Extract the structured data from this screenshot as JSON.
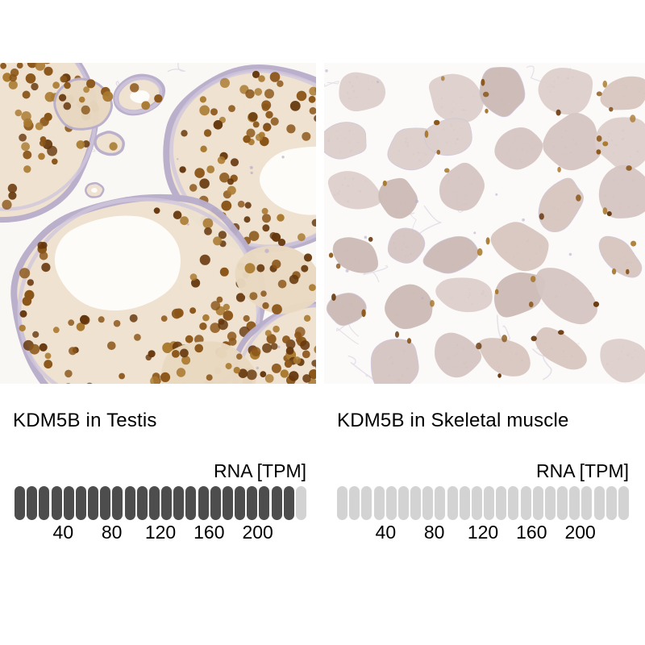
{
  "figure": {
    "type": "immunohistochemistry comparison with RNA expression bars",
    "protein": "KDM5B"
  },
  "panels": [
    {
      "title": "KDM5B in Testis",
      "tissue": "Testis",
      "rna_unit_label": "RNA [TPM]",
      "micrograph": {
        "kind": "IHC staining",
        "description": "Testis tissue: seminiferous tubules with strong brown nuclear staining, lavender tubule borders, white lumens"
      },
      "bar": {
        "total_pills": 24,
        "filled_pills": 23,
        "tpm_per_pill": 10,
        "ticks": [
          "40",
          "80",
          "120",
          "160",
          "200"
        ]
      }
    },
    {
      "title": "KDM5B in Skeletal muscle",
      "tissue": "Skeletal muscle",
      "rna_unit_label": "RNA [TPM]",
      "micrograph": {
        "kind": "IHC staining",
        "description": "Skeletal muscle: pale pink-mauve fiber cross-sections with sparse small brown nuclei, no significant staining"
      },
      "bar": {
        "total_pills": 24,
        "filled_pills": 0,
        "tpm_per_pill": 10,
        "ticks": [
          "40",
          "80",
          "120",
          "160",
          "200"
        ]
      }
    }
  ],
  "chart_data": [
    {
      "type": "bar",
      "title": "KDM5B in Testis",
      "value_label": "RNA [TPM]",
      "value_tpm": 230,
      "axis_ticks": [
        40,
        80,
        120,
        160,
        200
      ],
      "axis_max": 240,
      "segments": 24,
      "filled_segments": 23,
      "legend_position": "none",
      "grid": false
    },
    {
      "type": "bar",
      "title": "KDM5B in Skeletal muscle",
      "value_label": "RNA [TPM]",
      "value_tpm": 0,
      "axis_ticks": [
        40,
        80,
        120,
        160,
        200
      ],
      "axis_max": 240,
      "segments": 24,
      "filled_segments": 0,
      "legend_position": "none",
      "grid": false
    }
  ],
  "colors": {
    "page_bg": "#ffffff",
    "text": "#000000",
    "pill_filled": "#4d4d4d",
    "pill_empty": "#d3d3d3",
    "stain": {
      "testis_bg": "#faf8f5",
      "cytoplasm": "#efe2cf",
      "cytoplasm2": "#e9d8c1",
      "nucleus_brown_dark": "#66370c",
      "nucleus_brown": "#8a5518",
      "nucleus_brown_light": "#a9792f",
      "lavender": "#b9aecb",
      "lavender_light": "#cfc7dc",
      "muscle_bg": "#fbfaf8",
      "fiber": "#d5c5c2",
      "fiber_light": "#ddcfcb",
      "fiber_dark": "#cbb9b4",
      "fiber_pink": "#d8c6bf"
    }
  }
}
